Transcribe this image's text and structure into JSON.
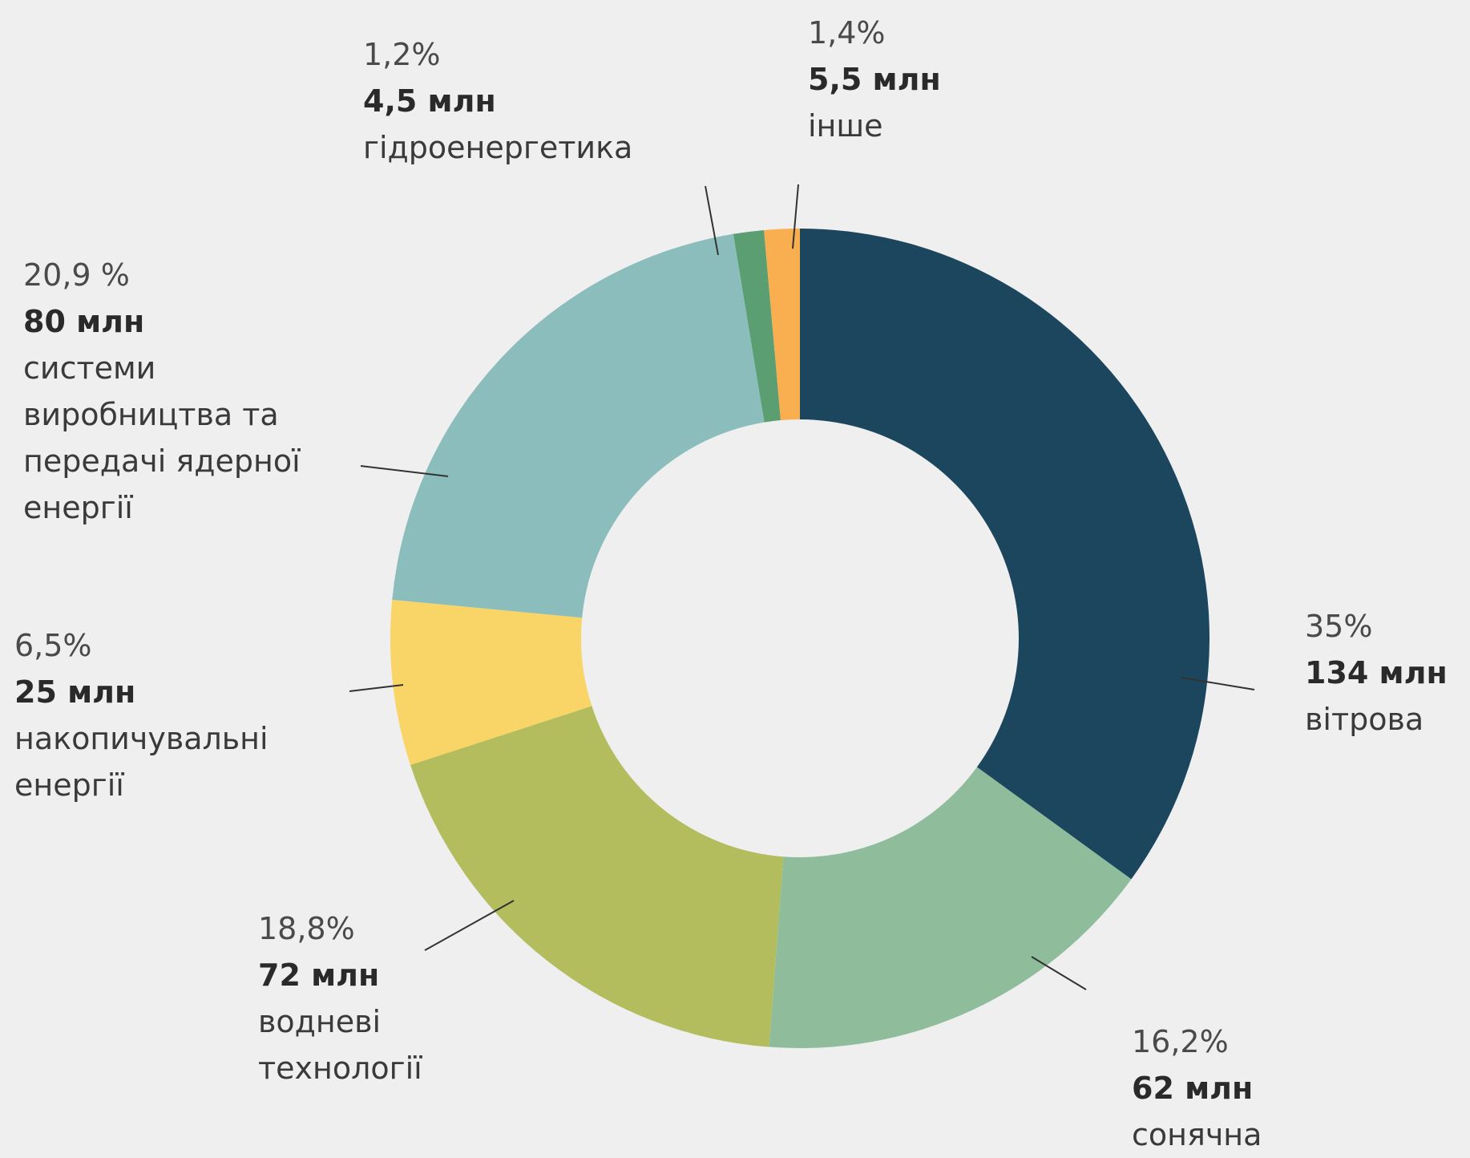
{
  "chart_data": {
    "type": "donut",
    "categories": [
      "вітрова",
      "сонячна",
      "водневі технології",
      "накопичувальні енергії",
      "системи виробництва та передачі ядерної енергії",
      "гідроенергетика",
      "інше"
    ],
    "values": [
      35,
      16.2,
      18.8,
      6.5,
      20.9,
      1.2,
      1.4
    ],
    "value_labels": [
      "35%",
      "16,2%",
      "18,8%",
      "6,5%",
      "20,9 %",
      "1,2%",
      "1,4%"
    ],
    "amounts": [
      134,
      62,
      72,
      25,
      80,
      4.5,
      5.5
    ],
    "amount_labels": [
      "134 млн",
      "62 млн",
      "72 млн",
      "25 млн",
      "80 млн",
      "4,5 млн",
      "5,5 млн"
    ],
    "colors": [
      "#1b465e",
      "#8fbd9c",
      "#b3bd5e",
      "#f9d466",
      "#8bbdbc",
      "#5a9e72",
      "#f9ae4f"
    ]
  }
}
